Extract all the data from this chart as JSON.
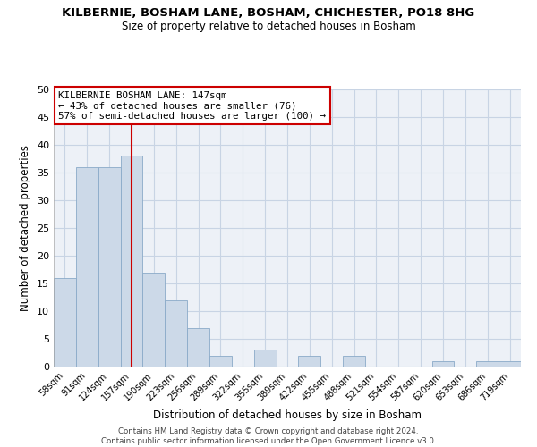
{
  "title": "KILBERNIE, BOSHAM LANE, BOSHAM, CHICHESTER, PO18 8HG",
  "subtitle": "Size of property relative to detached houses in Bosham",
  "xlabel": "Distribution of detached houses by size in Bosham",
  "ylabel": "Number of detached properties",
  "bar_color": "#ccd9e8",
  "bar_edgecolor": "#8aaac8",
  "categories": [
    "58sqm",
    "91sqm",
    "124sqm",
    "157sqm",
    "190sqm",
    "223sqm",
    "256sqm",
    "289sqm",
    "322sqm",
    "355sqm",
    "389sqm",
    "422sqm",
    "455sqm",
    "488sqm",
    "521sqm",
    "554sqm",
    "587sqm",
    "620sqm",
    "653sqm",
    "686sqm",
    "719sqm"
  ],
  "values": [
    16,
    36,
    36,
    38,
    17,
    12,
    7,
    2,
    0,
    3,
    0,
    2,
    0,
    2,
    0,
    0,
    0,
    1,
    0,
    1,
    1
  ],
  "ylim": [
    0,
    50
  ],
  "yticks": [
    0,
    5,
    10,
    15,
    20,
    25,
    30,
    35,
    40,
    45,
    50
  ],
  "vline_x": 3.5,
  "vline_color": "#cc0000",
  "annotation_title": "KILBERNIE BOSHAM LANE: 147sqm",
  "annotation_line1": "← 43% of detached houses are smaller (76)",
  "annotation_line2": "57% of semi-detached houses are larger (100) →",
  "annotation_box_color": "#ffffff",
  "annotation_box_edgecolor": "#cc0000",
  "footer_line1": "Contains HM Land Registry data © Crown copyright and database right 2024.",
  "footer_line2": "Contains public sector information licensed under the Open Government Licence v3.0.",
  "grid_color": "#c8d4e4",
  "background_color": "#edf1f7"
}
